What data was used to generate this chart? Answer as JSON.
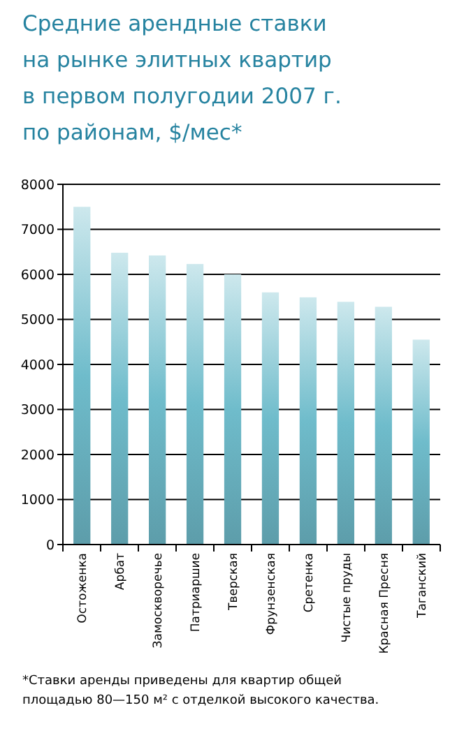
{
  "chart_data": {
    "type": "bar",
    "title": "Средние арендные ставки\nна рынке элитных квартир\nв первом полугодии 2007 г.\nпо районам, $/мес*",
    "categories": [
      "Остоженка",
      "Арбат",
      "Замоскворечье",
      "Патриаршие",
      "Тверская",
      "Фрунзенская",
      "Сретенка",
      "Чистые пруды",
      "Красная Пресня",
      "Таганский"
    ],
    "values": [
      7500,
      6480,
      6420,
      6230,
      6000,
      5600,
      5490,
      5390,
      5280,
      4550
    ],
    "color": "#6fbccb",
    "ylim": [
      0,
      8000
    ],
    "yticks": [
      0,
      1000,
      2000,
      3000,
      4000,
      5000,
      6000,
      7000,
      8000
    ],
    "grid": "y",
    "annotations": [
      "*Ставки аренды приведены для квартир общей\nплощадью 80—150 м² с отделкой высокого качества."
    ]
  }
}
